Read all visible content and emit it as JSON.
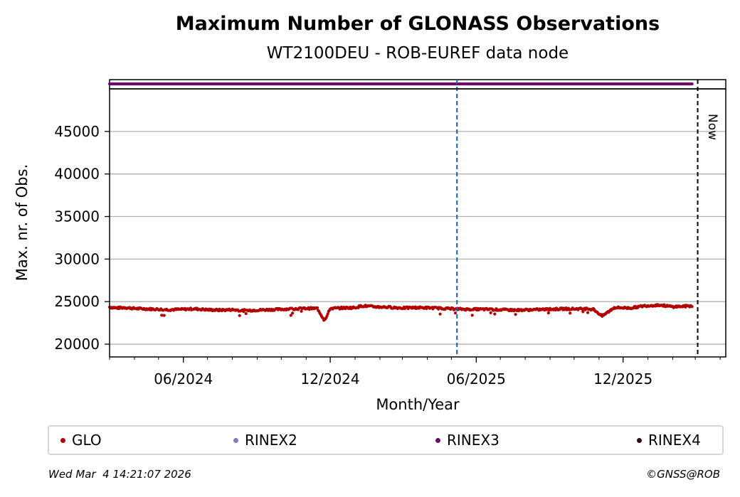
{
  "title": "Maximum Number of GLONASS Observations",
  "subtitle": "WT2100DEU - ROB-EUREF data node",
  "footer": {
    "timestamp": "Wed Mar  4 14:21:07 2026",
    "copyright": "©GNSS@ROB"
  },
  "legend": [
    {
      "label": "GLO",
      "color": "#b30000"
    },
    {
      "label": "RINEX2",
      "color": "#7b7bbd"
    },
    {
      "label": "RINEX3",
      "color": "#6a0d6a"
    },
    {
      "label": "RINEX4",
      "color": "#2a0a1f"
    }
  ],
  "chart_data": {
    "type": "scatter",
    "title": "Maximum Number of GLONASS Observations",
    "subtitle": "WT2100DEU - ROB-EUREF data node",
    "xlabel": "Month/Year",
    "ylabel": "Max. nr. of Obs.",
    "xlim": [
      "2024-03-01",
      "2026-04-08"
    ],
    "ylim": [
      18500,
      50000
    ],
    "yticks": [
      20000,
      25000,
      30000,
      35000,
      40000,
      45000
    ],
    "xticks": [
      {
        "date": "2024-06-01",
        "label": "06/2024"
      },
      {
        "date": "2024-12-01",
        "label": "12/2024"
      },
      {
        "date": "2025-06-01",
        "label": "06/2025"
      },
      {
        "date": "2025-12-01",
        "label": "12/2025"
      }
    ],
    "grid": {
      "y": true,
      "x": false
    },
    "legend_position": "bottom",
    "vertical_lines": [
      {
        "date": "2025-05-08",
        "style": "dashed",
        "color": "#1f5fa8"
      },
      {
        "date": "2026-03-04",
        "style": "dashed",
        "color": "#000000",
        "label": "Now"
      }
    ],
    "series": [
      {
        "name": "GLO",
        "color": "#b30000",
        "x_start": "2024-03-01",
        "x_end": "2026-02-25",
        "points": [
          [
            "2024-03-01",
            24350
          ],
          [
            "2024-03-10",
            24250
          ],
          [
            "2024-03-20",
            24300
          ],
          [
            "2024-04-01",
            24200
          ],
          [
            "2024-04-15",
            24150
          ],
          [
            "2024-05-01",
            24100
          ],
          [
            "2024-05-15",
            24050
          ],
          [
            "2024-06-01",
            24100
          ],
          [
            "2024-06-15",
            24150
          ],
          [
            "2024-07-01",
            24050
          ],
          [
            "2024-07-15",
            24000
          ],
          [
            "2024-08-01",
            24050
          ],
          [
            "2024-08-15",
            23950
          ],
          [
            "2024-09-01",
            24000
          ],
          [
            "2024-09-15",
            24050
          ],
          [
            "2024-10-01",
            24100
          ],
          [
            "2024-10-15",
            24150
          ],
          [
            "2024-11-01",
            24200
          ],
          [
            "2024-11-15",
            24200
          ],
          [
            "2024-11-23",
            22900
          ],
          [
            "2024-11-26",
            23100
          ],
          [
            "2024-12-01",
            24200
          ],
          [
            "2024-12-15",
            24250
          ],
          [
            "2025-01-01",
            24300
          ],
          [
            "2025-01-10",
            24500
          ],
          [
            "2025-01-25",
            24400
          ],
          [
            "2025-02-10",
            24350
          ],
          [
            "2025-03-01",
            24250
          ],
          [
            "2025-03-20",
            24300
          ],
          [
            "2025-04-10",
            24250
          ],
          [
            "2025-05-01",
            24150
          ],
          [
            "2025-05-20",
            24100
          ],
          [
            "2025-06-10",
            24100
          ],
          [
            "2025-07-01",
            24050
          ],
          [
            "2025-07-20",
            24000
          ],
          [
            "2025-08-10",
            24050
          ],
          [
            "2025-09-01",
            24100
          ],
          [
            "2025-09-20",
            24150
          ],
          [
            "2025-10-10",
            24150
          ],
          [
            "2025-10-25",
            24100
          ],
          [
            "2025-11-05",
            23300
          ],
          [
            "2025-11-20",
            24300
          ],
          [
            "2025-12-10",
            24250
          ],
          [
            "2025-12-28",
            24500
          ],
          [
            "2026-01-15",
            24600
          ],
          [
            "2026-02-01",
            24400
          ],
          [
            "2026-02-15",
            24450
          ],
          [
            "2026-02-25",
            24500
          ]
        ]
      },
      {
        "name": "RINEX3",
        "color": "#6a0d6a",
        "x_start": "2024-03-01",
        "x_end": "2026-02-25",
        "note_band": "top strip"
      }
    ]
  }
}
